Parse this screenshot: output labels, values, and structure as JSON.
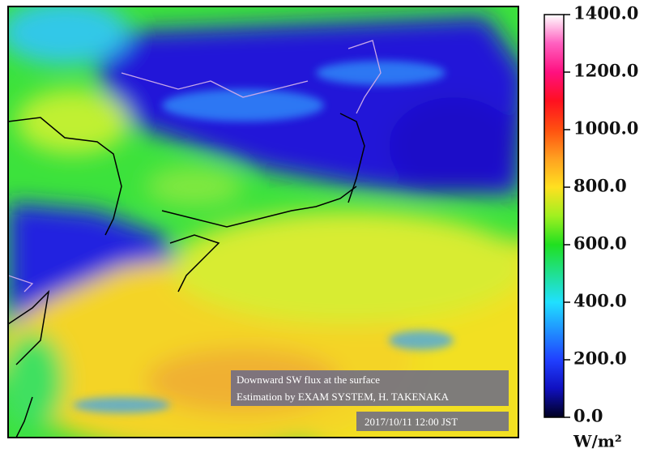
{
  "map": {
    "annotation": [
      "Downward SW flux at the surface",
      "Estimation by EXAM SYSTEM,  H. TAKENAKA"
    ],
    "timestamp": "2017/10/11 12:00 JST"
  },
  "colorbar": {
    "lim": [
      0,
      1400
    ],
    "ticks": [
      {
        "value": 0,
        "label": "0.0"
      },
      {
        "value": 200,
        "label": "200.0"
      },
      {
        "value": 400,
        "label": "400.0"
      },
      {
        "value": 600,
        "label": "600.0"
      },
      {
        "value": 800,
        "label": "800.0"
      },
      {
        "value": 1000,
        "label": "1000.0"
      },
      {
        "value": 1200,
        "label": "1200.0"
      },
      {
        "value": 1400,
        "label": "1400.0"
      }
    ],
    "colors": [
      "#000020",
      "#1010c0",
      "#2040ff",
      "#2090ff",
      "#20e0ff",
      "#20e090",
      "#20e020",
      "#a0f020",
      "#ffe020",
      "#ffa020",
      "#ff5010",
      "#ff1020",
      "#ff1080",
      "#ff60c0",
      "#ffffff"
    ],
    "unit": "W/m²"
  }
}
